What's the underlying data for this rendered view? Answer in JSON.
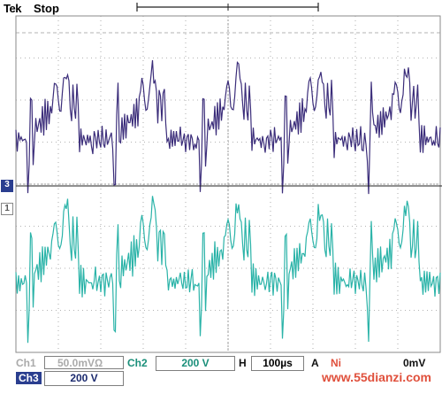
{
  "header": {
    "brand": "Tek",
    "mode": "Stop"
  },
  "markers": {
    "ch3": "3",
    "ch1": "1"
  },
  "status": {
    "ch1_label": "Ch1",
    "ch1_scale": "50.0mV",
    "ch1_suffix": "Ω",
    "ch2_label": "Ch2",
    "ch2_scale": "200 V",
    "timebase_label": "H",
    "timebase": "100µs",
    "trigger_label": "A",
    "trigger_source": "Ni",
    "trigger_level": "0mV",
    "ch3_label": "Ch3",
    "ch3_scale": "200 V"
  },
  "watermark": "www.55dianzi.com",
  "colors": {
    "trace_upper": "#3b2d7a",
    "trace_lower": "#2ab3a8",
    "grid": "#9a9a9a",
    "frame": "#8a8a8a"
  }
}
